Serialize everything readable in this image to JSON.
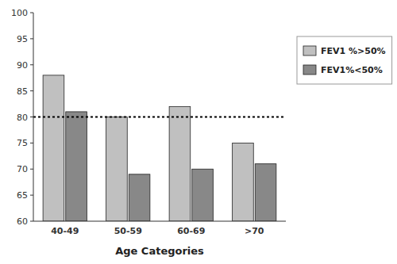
{
  "chart_data": {
    "type": "bar",
    "categories": [
      "40-49",
      "50-59",
      "60-69",
      ">70"
    ],
    "series": [
      {
        "name": "FEV1 %>50%",
        "color": "#c0c0c0",
        "values": [
          88,
          80,
          82,
          75
        ]
      },
      {
        "name": "FEV1%<50%",
        "color": "#888888",
        "values": [
          81,
          69,
          70,
          71
        ]
      }
    ],
    "xlabel": "Age Categories",
    "ylim": [
      60,
      100
    ],
    "yticks": [
      60,
      65,
      70,
      75,
      80,
      85,
      90,
      95,
      100
    ],
    "hline": 80,
    "grid": false,
    "legend": "right"
  }
}
